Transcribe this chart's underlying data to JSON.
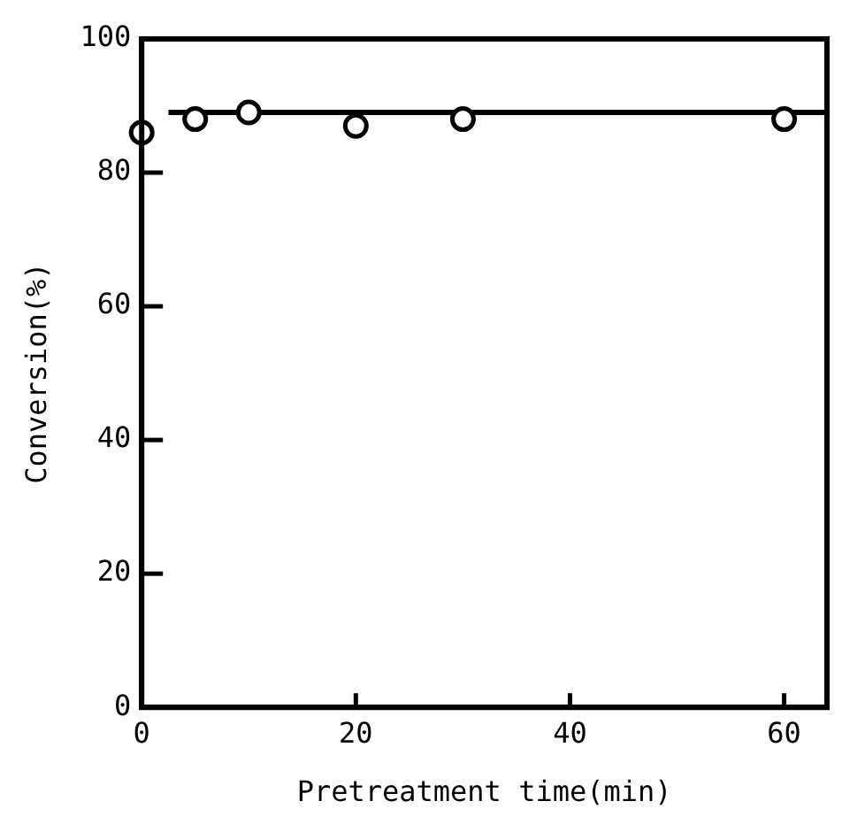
{
  "chart_data": {
    "type": "scatter",
    "xlabel": "Pretreatment time(min)",
    "ylabel": "Conversion(%)",
    "xlim": [
      0,
      64
    ],
    "ylim": [
      0,
      100
    ],
    "xticks": [
      0,
      20,
      40,
      60
    ],
    "yticks": [
      0,
      20,
      40,
      60,
      80,
      100
    ],
    "grid": false,
    "legend": false,
    "marker": "circle",
    "series": [
      {
        "color": "#000000",
        "x": [
          0,
          5,
          10,
          20,
          30,
          60
        ],
        "values": [
          86,
          88,
          89,
          87,
          88,
          88
        ]
      },
      {
        "type": "line",
        "color": "#000000",
        "x": [
          2.5,
          64
        ],
        "values": [
          89,
          89
        ],
        "marker": "none"
      }
    ]
  }
}
